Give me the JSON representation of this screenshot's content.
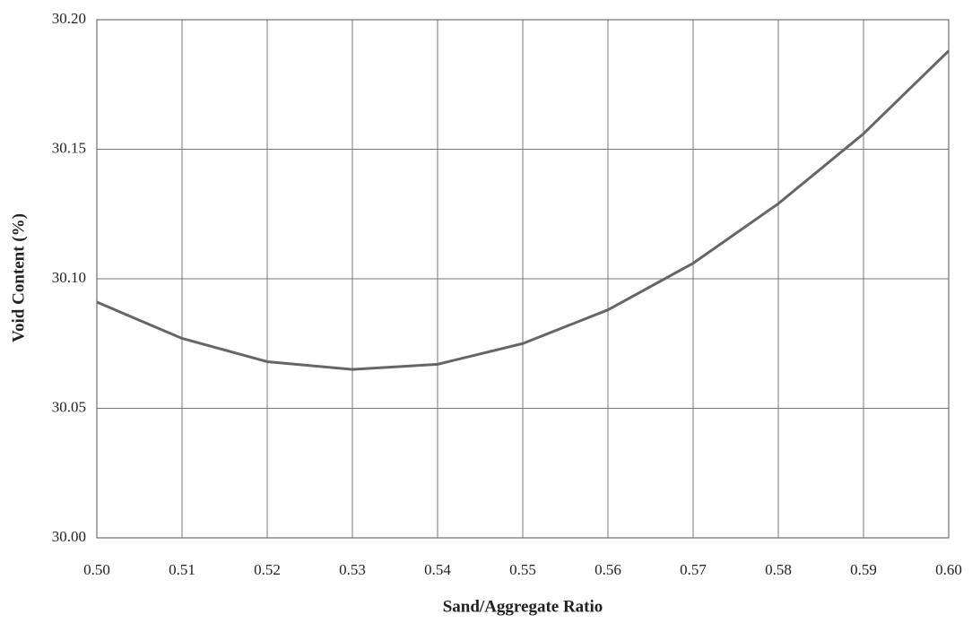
{
  "chart_data": {
    "type": "line",
    "x_label": "Sand/Aggregate Ratio",
    "y_label": "Void Content (%)",
    "x": [
      0.5,
      0.51,
      0.52,
      0.53,
      0.54,
      0.55,
      0.56,
      0.57,
      0.58,
      0.59,
      0.6
    ],
    "series": [
      {
        "color": "#666666",
        "values": [
          30.091,
          30.077,
          30.068,
          30.065,
          30.067,
          30.075,
          30.088,
          30.106,
          30.129,
          30.156,
          30.188
        ]
      }
    ],
    "xlim": [
      0.5,
      0.6
    ],
    "xticks": [
      {
        "value": 0.5,
        "label": "0.50"
      },
      0.51,
      0.52,
      0.53,
      0.54,
      0.55,
      0.56,
      0.57,
      0.58,
      0.59,
      {
        "value": 0.6,
        "label": "0.60"
      }
    ],
    "ylim": [
      30.0,
      30.2
    ],
    "yticks": [
      {
        "value": 30.0,
        "label": "30.00"
      },
      30.05,
      {
        "value": 30.1,
        "label": "30.10"
      },
      30.15,
      {
        "value": 30.2,
        "label": "30.20"
      }
    ],
    "grid": true
  }
}
